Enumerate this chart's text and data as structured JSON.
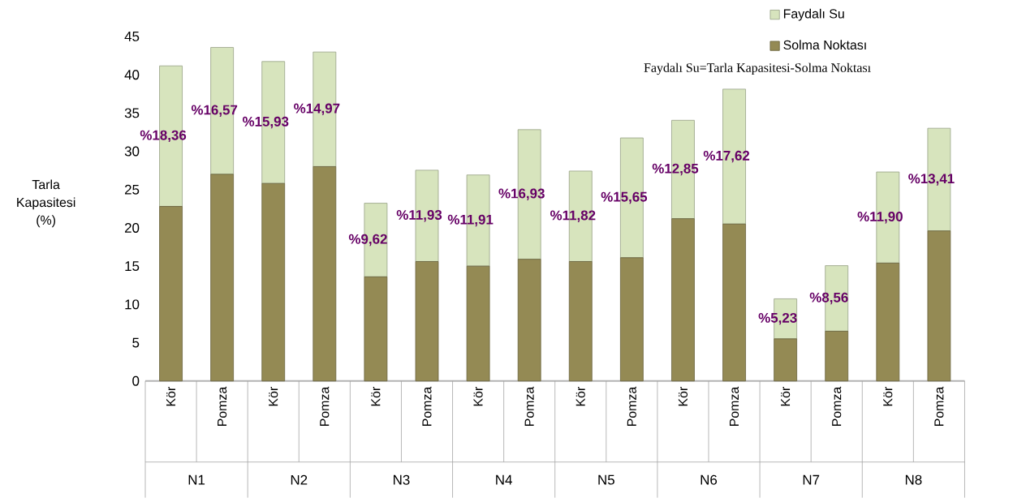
{
  "chart_data": {
    "type": "bar",
    "stacked": true,
    "ylabel": "Tarla Kapasitesi (%)",
    "categories": [
      "Kör",
      "Pomza",
      "Kör",
      "Pomza",
      "Kör",
      "Pomza",
      "Kör",
      "Pomza",
      "Kör",
      "Pomza",
      "Kör",
      "Pomza",
      "Kör",
      "Pomza",
      "Kör",
      "Pomza"
    ],
    "series": [
      {
        "name": "Solma Noktası",
        "color": "#948a54",
        "values": [
          22.8,
          27.0,
          25.8,
          28.0,
          13.6,
          15.6,
          15.0,
          15.9,
          15.6,
          16.1,
          21.2,
          20.5,
          5.5,
          6.5,
          15.4,
          19.6
        ]
      },
      {
        "name": "Faydalı Su",
        "color": "#d7e4bd",
        "values": [
          18.36,
          16.57,
          15.93,
          14.97,
          9.62,
          11.93,
          11.91,
          16.93,
          11.82,
          15.65,
          12.85,
          17.62,
          5.23,
          8.56,
          11.9,
          13.41
        ],
        "value_labels": [
          "%18,36",
          "%16,57",
          "%15,93",
          "%14,97",
          "%9,62",
          "%11,93",
          "%11,91",
          "%16,93",
          "%11,82",
          "%15,65",
          "%12,85",
          "%17,62",
          "%5,23",
          "%8,56",
          "%11,90",
          "%13,41"
        ]
      }
    ],
    "ylim": [
      0,
      45
    ],
    "yticks": [
      0,
      5,
      10,
      15,
      20,
      25,
      30,
      35,
      40,
      45
    ],
    "legend": "top right",
    "annotations": [
      "Faydalı Su=Tarla Kapasitesi-Solma Noktası",
      "N1",
      "N2",
      "N3",
      "N4",
      "N5",
      "N6",
      "N7",
      "N8"
    ]
  }
}
